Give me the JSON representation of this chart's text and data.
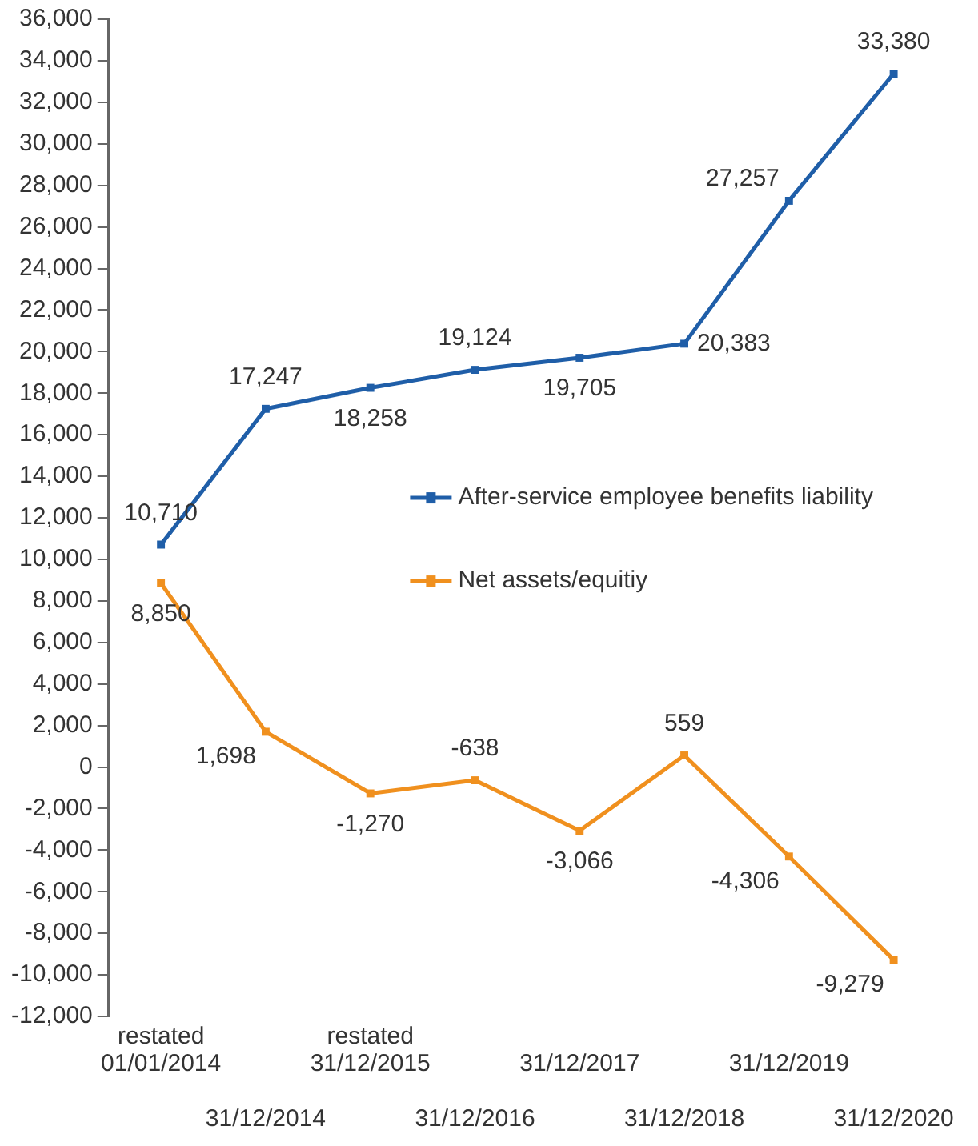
{
  "chart_data": {
    "type": "line",
    "categories": [
      "restated 01/01/2014",
      "31/12/2014",
      "restated 31/12/2015",
      "31/12/2016",
      "31/12/2017",
      "31/12/2018",
      "31/12/2019",
      "31/12/2020"
    ],
    "series": [
      {
        "name": "After-service employee benefits liability",
        "color": "#1f5ea8",
        "values": [
          10710,
          17247,
          18258,
          19124,
          19705,
          20383,
          27257,
          33380
        ],
        "value_labels": [
          "10,710",
          "17,247",
          "18,258",
          "19,124",
          "19,705",
          "20,383",
          "27,257",
          "33,380"
        ]
      },
      {
        "name": "Net assets/equitiy",
        "color": "#f0901e",
        "values": [
          8850,
          1698,
          -1270,
          -638,
          -3066,
          559,
          -4306,
          -9279
        ],
        "value_labels": [
          "8,850",
          "1,698",
          "-1,270",
          "-638",
          "-3,066",
          "559",
          "-4,306",
          "-9,279"
        ]
      }
    ],
    "ylim": [
      -12000,
      36000
    ],
    "yticks": [
      {
        "value": -12000,
        "label": "-12,000"
      },
      {
        "value": -10000,
        "label": "-10,000"
      },
      {
        "value": -8000,
        "label": "-8,000"
      },
      {
        "value": -6000,
        "label": "-6,000"
      },
      {
        "value": -4000,
        "label": "-4,000"
      },
      {
        "value": -2000,
        "label": "-2,000"
      },
      0,
      {
        "value": 2000,
        "label": "2,000"
      },
      {
        "value": 4000,
        "label": "4,000"
      },
      {
        "value": 6000,
        "label": "6,000"
      },
      {
        "value": 8000,
        "label": "8,000"
      },
      {
        "value": 10000,
        "label": "10,000"
      },
      {
        "value": 12000,
        "label": "12,000"
      },
      {
        "value": 14000,
        "label": "14,000"
      },
      {
        "value": 16000,
        "label": "16,000"
      },
      {
        "value": 18000,
        "label": "18,000"
      },
      {
        "value": 20000,
        "label": "20,000"
      },
      {
        "value": 22000,
        "label": "22,000"
      },
      {
        "value": 24000,
        "label": "24,000"
      },
      {
        "value": 26000,
        "label": "26,000"
      },
      {
        "value": 28000,
        "label": "28,000"
      },
      {
        "value": 30000,
        "label": "30,000"
      },
      {
        "value": 32000,
        "label": "32,000"
      },
      {
        "value": 34000,
        "label": "34,000"
      },
      {
        "value": 36000,
        "label": "36,000"
      }
    ],
    "grid": false,
    "legend": "right",
    "marker": "square",
    "line_style": "solid"
  }
}
